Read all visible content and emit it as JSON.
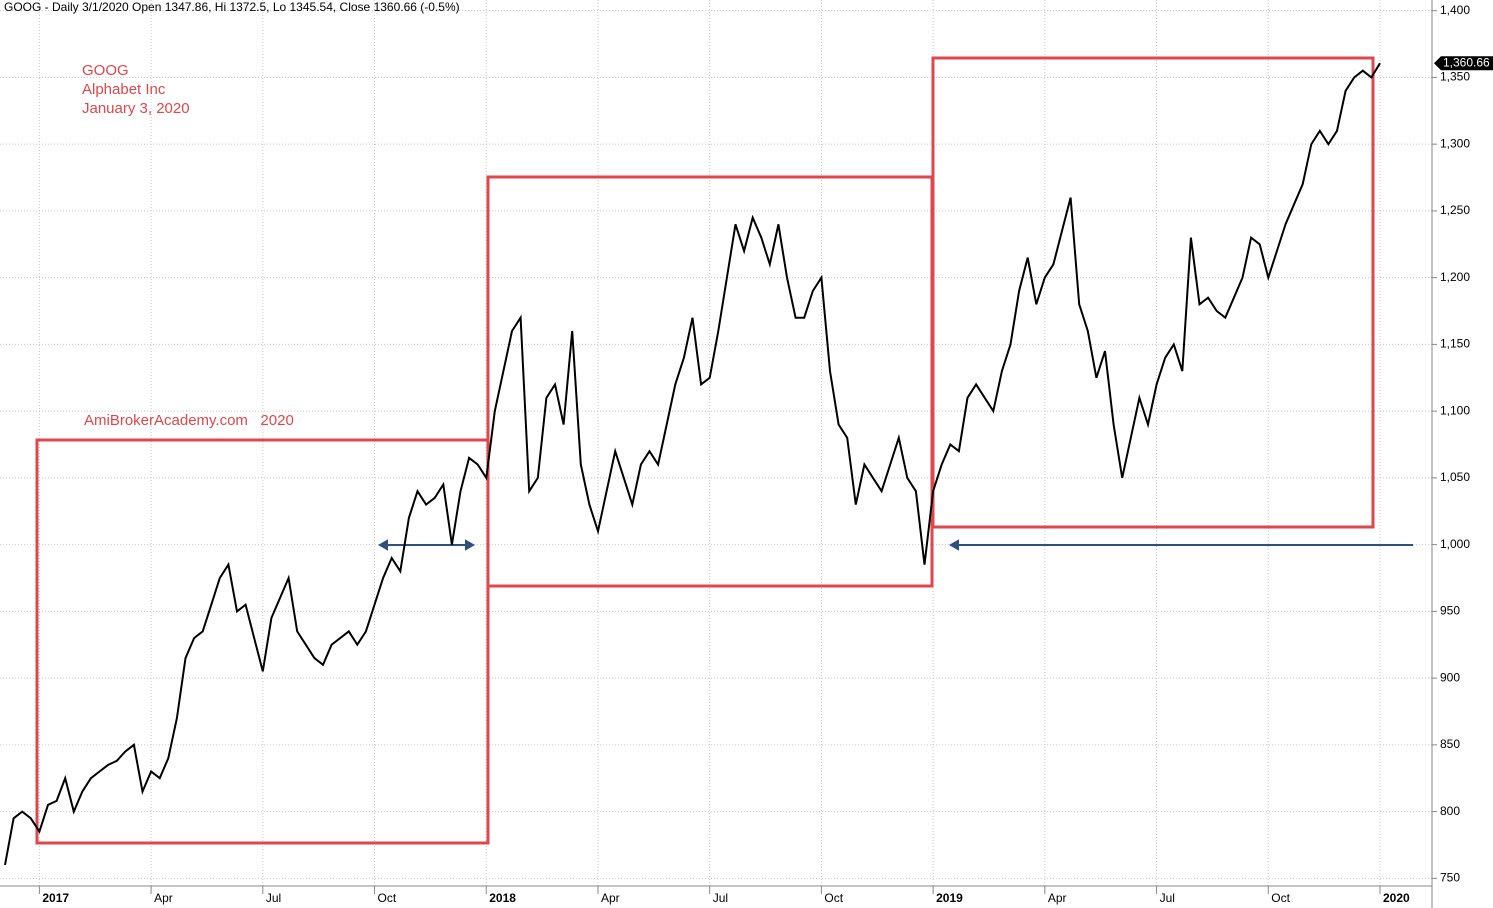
{
  "chart_data": {
    "type": "line",
    "title": "GOOG - Daily 3/1/2020 Open 1347.86, Hi 1372.5, Lo 1345.54, Close 1360.66 (-0.5%)",
    "annotations": [
      "GOOG",
      "Alphabet Inc",
      "January 3, 2020",
      "AmiBrokerAcademy.com   2020"
    ],
    "last_price_label": "1,360.66",
    "color": "#000000",
    "grid": true,
    "categories": [
      null,
      null,
      null,
      null,
      "2017",
      null,
      null,
      null,
      null,
      null,
      null,
      null,
      null,
      null,
      null,
      null,
      null,
      "Apr",
      null,
      null,
      null,
      null,
      null,
      null,
      null,
      null,
      null,
      null,
      null,
      null,
      "Jul",
      null,
      null,
      null,
      null,
      null,
      null,
      null,
      null,
      null,
      null,
      null,
      null,
      "Oct",
      null,
      null,
      null,
      null,
      null,
      null,
      null,
      null,
      null,
      null,
      null,
      null,
      "2018",
      null,
      null,
      null,
      null,
      null,
      null,
      null,
      null,
      null,
      null,
      null,
      null,
      "Apr",
      null,
      null,
      null,
      null,
      null,
      null,
      null,
      null,
      null,
      null,
      null,
      null,
      "Jul",
      null,
      null,
      null,
      null,
      null,
      null,
      null,
      null,
      null,
      null,
      null,
      null,
      "Oct",
      null,
      null,
      null,
      null,
      null,
      null,
      null,
      null,
      null,
      null,
      null,
      null,
      "2019",
      null,
      null,
      null,
      null,
      null,
      null,
      null,
      null,
      null,
      null,
      null,
      null,
      "Apr",
      null,
      null,
      null,
      null,
      null,
      null,
      null,
      null,
      null,
      null,
      null,
      null,
      "Jul",
      null,
      null,
      null,
      null,
      null,
      null,
      null,
      null,
      null,
      null,
      null,
      null,
      "Oct",
      null,
      null,
      null,
      null,
      null,
      null,
      null,
      null,
      null,
      null,
      null,
      null,
      "2020"
    ],
    "values": [
      760,
      795,
      800,
      795,
      785,
      805,
      808,
      825,
      800,
      815,
      825,
      830,
      835,
      838,
      845,
      850,
      815,
      830,
      825,
      840,
      870,
      915,
      930,
      935,
      955,
      975,
      985,
      950,
      955,
      930,
      905,
      945,
      960,
      975,
      935,
      925,
      915,
      910,
      925,
      930,
      935,
      925,
      935,
      955,
      975,
      990,
      980,
      1020,
      1040,
      1030,
      1035,
      1045,
      1000,
      1040,
      1065,
      1060,
      1050,
      1100,
      1130,
      1160,
      1170,
      1040,
      1050,
      1110,
      1120,
      1090,
      1160,
      1060,
      1030,
      1010,
      1040,
      1070,
      1050,
      1030,
      1060,
      1070,
      1060,
      1090,
      1120,
      1140,
      1170,
      1120,
      1125,
      1160,
      1200,
      1240,
      1220,
      1245,
      1230,
      1210,
      1240,
      1200,
      1170,
      1170,
      1190,
      1200,
      1130,
      1090,
      1080,
      1030,
      1060,
      1050,
      1040,
      1060,
      1080,
      1050,
      1040,
      985,
      1040,
      1060,
      1075,
      1070,
      1110,
      1120,
      1110,
      1100,
      1130,
      1150,
      1190,
      1215,
      1180,
      1200,
      1210,
      1235,
      1260,
      1180,
      1160,
      1125,
      1145,
      1090,
      1050,
      1080,
      1110,
      1090,
      1120,
      1140,
      1150,
      1130,
      1230,
      1180,
      1185,
      1175,
      1170,
      1185,
      1200,
      1230,
      1225,
      1200,
      1220,
      1240,
      1255,
      1270,
      1300,
      1310,
      1300,
      1310,
      1340,
      1350,
      1355,
      1350,
      1360.66
    ],
    "ylim": [
      745,
      1408
    ],
    "yticks": [
      750,
      800,
      850,
      900,
      950,
      {
        "value": 1000,
        "label": "1,000"
      },
      {
        "value": 1050,
        "label": "1,050"
      },
      {
        "value": 1100,
        "label": "1,100"
      },
      {
        "value": 1150,
        "label": "1,150"
      },
      {
        "value": 1200,
        "label": "1,200"
      },
      {
        "value": 1250,
        "label": "1,250"
      },
      {
        "value": 1300,
        "label": "1,300"
      },
      {
        "value": 1350,
        "label": "1,350"
      },
      {
        "value": 1400,
        "label": "1,400"
      }
    ]
  }
}
